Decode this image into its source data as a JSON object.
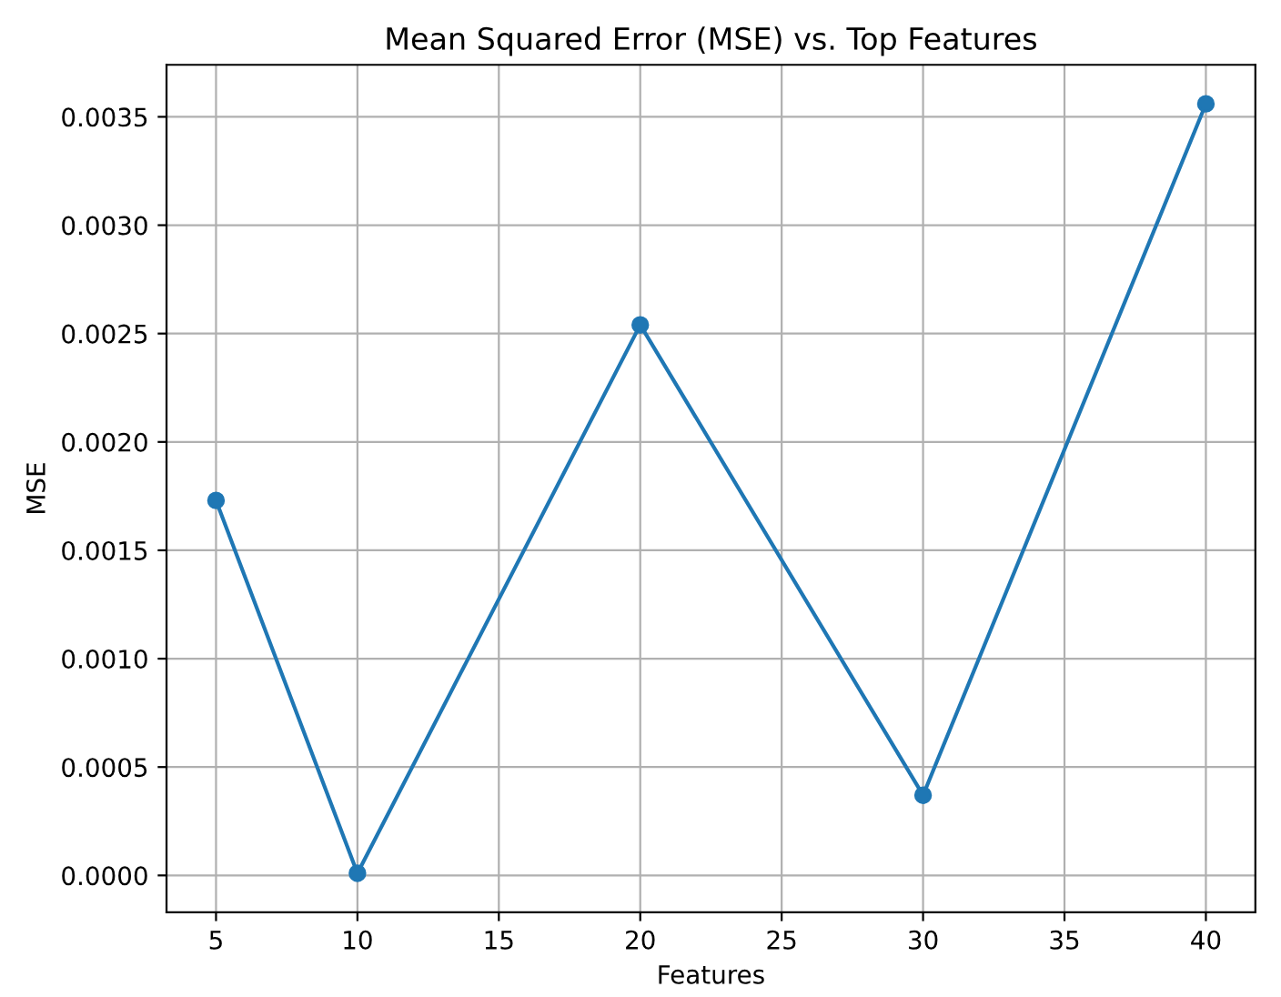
{
  "chart_data": {
    "type": "line",
    "title": "Mean Squared Error (MSE) vs. Top Features",
    "xlabel": "Features",
    "ylabel": "MSE",
    "x": [
      5,
      10,
      20,
      30,
      40
    ],
    "series": [
      {
        "color": "#1f77b4",
        "values": [
          0.00173,
          1e-05,
          0.00254,
          0.00037,
          0.00356
        ]
      }
    ],
    "xlim": [
      3.25,
      41.75
    ],
    "ylim": [
      -0.00017,
      0.00374
    ],
    "xticks": [
      5,
      10,
      15,
      20,
      25,
      30,
      35,
      40
    ],
    "yticks": [
      {
        "value": 0,
        "label": "0.0000"
      },
      {
        "value": 0.0005,
        "label": "0.0005"
      },
      {
        "value": 0.001,
        "label": "0.0010"
      },
      {
        "value": 0.0015,
        "label": "0.0015"
      },
      {
        "value": 0.002,
        "label": "0.0020"
      },
      {
        "value": 0.0025,
        "label": "0.0025"
      },
      {
        "value": 0.003,
        "label": "0.0030"
      },
      {
        "value": 0.0035,
        "label": "0.0035"
      }
    ],
    "grid": true,
    "marker": "circle",
    "line_style": "solid"
  }
}
